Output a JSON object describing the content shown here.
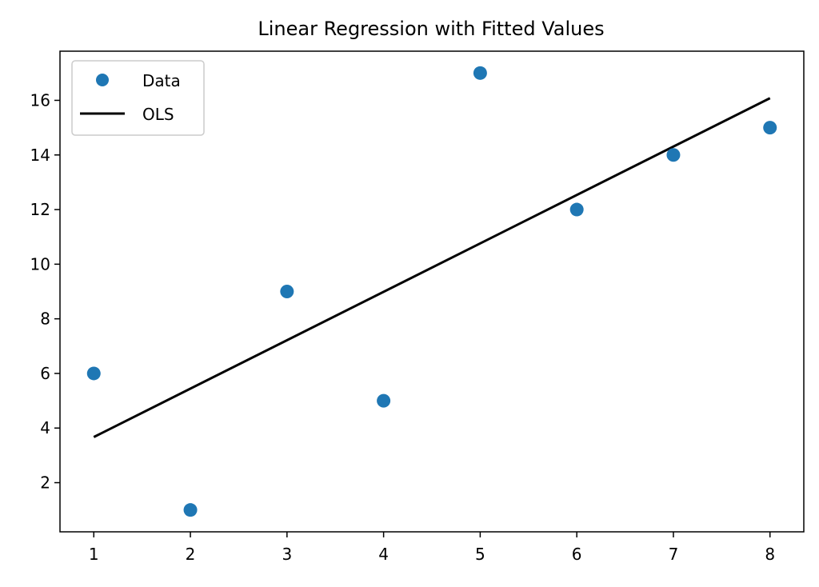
{
  "chart_data": {
    "type": "scatter",
    "title": "Linear Regression with Fitted Values",
    "xlabel": "",
    "ylabel": "",
    "xlim": [
      0.65,
      8.35
    ],
    "ylim": [
      0.2,
      17.8
    ],
    "xticks": [
      1,
      2,
      3,
      4,
      5,
      6,
      7,
      8
    ],
    "yticks": [
      2,
      4,
      6,
      8,
      10,
      12,
      14,
      16
    ],
    "grid": false,
    "legend_position": "top-left",
    "series": [
      {
        "name": "Data",
        "kind": "points",
        "color": "#1f77b4",
        "x": [
          1,
          2,
          3,
          4,
          5,
          6,
          7,
          8
        ],
        "y": [
          6,
          1,
          9,
          5,
          17,
          12,
          14,
          15
        ]
      },
      {
        "name": "OLS",
        "kind": "line",
        "color": "#000000",
        "x": [
          1,
          8
        ],
        "y": [
          3.67,
          16.08
        ]
      }
    ]
  }
}
